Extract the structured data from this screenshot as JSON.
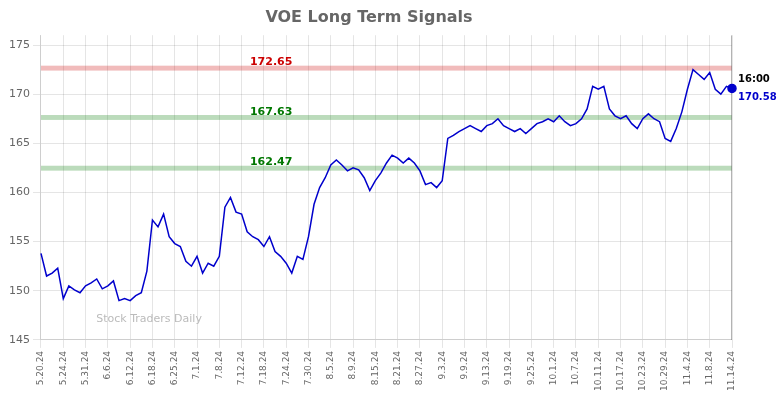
{
  "chart_data": {
    "type": "line",
    "title": "VOE Long Term Signals",
    "categories": [
      "5.20.24",
      null,
      null,
      null,
      "5.24.24",
      null,
      null,
      null,
      "5.31.24",
      null,
      null,
      null,
      "6.6.24",
      null,
      null,
      null,
      "6.12.24",
      null,
      null,
      null,
      "6.18.24",
      null,
      null,
      null,
      "6.25.24",
      null,
      null,
      null,
      "7.1.24",
      null,
      null,
      null,
      "7.8.24",
      null,
      null,
      null,
      "7.12.24",
      null,
      null,
      null,
      "7.18.24",
      null,
      null,
      null,
      "7.24.24",
      null,
      null,
      null,
      "7.30.24",
      null,
      null,
      null,
      "8.5.24",
      null,
      null,
      null,
      "8.9.24",
      null,
      null,
      null,
      "8.15.24",
      null,
      null,
      null,
      "8.21.24",
      null,
      null,
      null,
      "8.27.24",
      null,
      null,
      null,
      "9.3.24",
      null,
      null,
      null,
      "9.9.24",
      null,
      null,
      null,
      "9.13.24",
      null,
      null,
      null,
      "9.19.24",
      null,
      null,
      null,
      "9.25.24",
      null,
      null,
      null,
      "10.1.24",
      null,
      null,
      null,
      "10.7.24",
      null,
      null,
      null,
      "10.11.24",
      null,
      null,
      null,
      "10.17.24",
      null,
      null,
      null,
      "10.23.24",
      null,
      null,
      null,
      "10.29.24",
      null,
      null,
      null,
      "11.4.24",
      null,
      null,
      null,
      "11.8.24",
      null,
      null,
      null,
      "11.14.24"
    ],
    "values": [
      153.8,
      151.5,
      151.8,
      152.3,
      149.2,
      150.5,
      150.1,
      149.8,
      150.5,
      150.8,
      151.2,
      150.2,
      150.5,
      151.0,
      149.0,
      149.2,
      149.0,
      149.5,
      149.8,
      152.0,
      157.2,
      156.5,
      157.8,
      155.5,
      154.8,
      154.5,
      153.0,
      152.5,
      153.5,
      151.8,
      152.8,
      152.5,
      153.5,
      158.5,
      159.5,
      158.0,
      157.8,
      156.0,
      155.5,
      155.2,
      154.5,
      155.5,
      154.0,
      153.5,
      152.8,
      151.8,
      153.5,
      153.2,
      155.5,
      158.8,
      160.5,
      161.5,
      162.8,
      163.3,
      162.8,
      162.2,
      162.5,
      162.3,
      161.5,
      160.2,
      161.2,
      162.0,
      163.0,
      163.8,
      163.5,
      163.0,
      163.5,
      163.0,
      162.2,
      160.8,
      161.0,
      160.5,
      161.2,
      165.5,
      165.8,
      166.2,
      166.5,
      166.8,
      166.5,
      166.2,
      166.8,
      167.0,
      167.5,
      166.8,
      166.5,
      166.2,
      166.5,
      166.0,
      166.5,
      167.0,
      167.2,
      167.5,
      167.2,
      167.8,
      167.2,
      166.8,
      167.0,
      167.5,
      168.5,
      170.8,
      170.5,
      170.8,
      168.5,
      167.8,
      167.5,
      167.8,
      167.0,
      166.5,
      167.5,
      168.0,
      167.5,
      167.2,
      165.5,
      165.2,
      166.5,
      168.2,
      170.5,
      172.5,
      172.0,
      171.5,
      172.2,
      170.5,
      170.0,
      170.8,
      170.58
    ],
    "color": "#0000cc",
    "ylim": [
      145,
      176
    ],
    "yticks": [
      145,
      150,
      155,
      160,
      165,
      170,
      175
    ],
    "grid": true,
    "hlines": [
      {
        "y": 172.65,
        "label": "172.65",
        "color": "#cc0000"
      },
      {
        "y": 167.63,
        "label": "167.63",
        "color": "#007700"
      },
      {
        "y": 162.47,
        "label": "162.47",
        "color": "#007700"
      }
    ],
    "end_marker": {
      "label": "16:00",
      "color": "#0000cc"
    },
    "watermark": "Stock Traders Daily"
  }
}
